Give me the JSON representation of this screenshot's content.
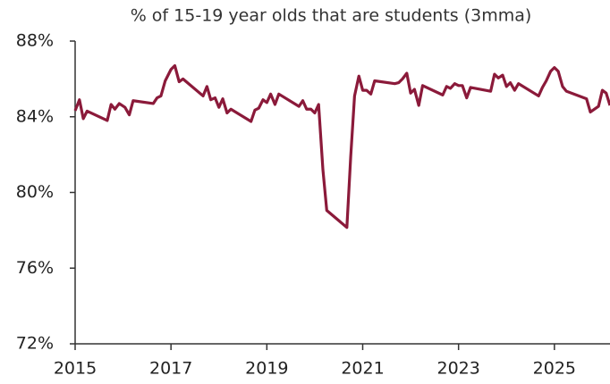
{
  "chart_data": {
    "type": "line",
    "title": "% of 15-19 year olds that are students (3mma)",
    "x": [
      2015.0,
      2015.09,
      2015.17,
      2015.25,
      2015.67,
      2015.75,
      2015.83,
      2015.92,
      2016.04,
      2016.13,
      2016.21,
      2016.63,
      2016.71,
      2016.79,
      2016.88,
      2017.0,
      2017.08,
      2017.17,
      2017.25,
      2017.67,
      2017.75,
      2017.83,
      2017.92,
      2018.0,
      2018.08,
      2018.17,
      2018.25,
      2018.67,
      2018.75,
      2018.83,
      2018.92,
      2019.0,
      2019.08,
      2019.17,
      2019.25,
      2019.67,
      2019.75,
      2019.83,
      2019.92,
      2020.0,
      2020.08,
      2020.17,
      2020.25,
      2020.67,
      2020.75,
      2020.83,
      2020.92,
      2021.0,
      2021.08,
      2021.17,
      2021.25,
      2021.67,
      2021.75,
      2021.83,
      2021.92,
      2022.0,
      2022.08,
      2022.17,
      2022.25,
      2022.67,
      2022.75,
      2022.83,
      2022.92,
      2023.0,
      2023.08,
      2023.17,
      2023.25,
      2023.67,
      2023.75,
      2023.83,
      2023.92,
      2024.0,
      2024.08,
      2024.17,
      2024.25,
      2024.67,
      2024.75,
      2024.83,
      2024.92,
      2025.0,
      2025.08,
      2025.17,
      2025.25,
      2025.67,
      2025.75,
      2025.92,
      2026.0,
      2026.08,
      2026.16
    ],
    "series": [
      {
        "name": "% of 15-19 year olds that are students",
        "color": "#8b1a3a",
        "values": [
          84.32,
          84.9,
          83.9,
          84.3,
          83.8,
          84.65,
          84.4,
          84.7,
          84.5,
          84.1,
          84.85,
          84.7,
          85.0,
          85.1,
          85.9,
          86.5,
          86.7,
          85.85,
          86.0,
          85.1,
          85.6,
          84.9,
          85.0,
          84.5,
          84.95,
          84.2,
          84.4,
          83.75,
          84.35,
          84.45,
          84.9,
          84.75,
          85.2,
          84.65,
          85.2,
          84.55,
          84.85,
          84.4,
          84.4,
          84.2,
          84.65,
          81.2,
          79.05,
          78.15,
          81.9,
          85.1,
          86.15,
          85.4,
          85.4,
          85.2,
          85.9,
          85.75,
          85.8,
          86.0,
          86.3,
          85.25,
          85.45,
          84.6,
          85.65,
          85.15,
          85.6,
          85.5,
          85.75,
          85.65,
          85.65,
          85.0,
          85.55,
          85.35,
          86.25,
          86.05,
          86.2,
          85.6,
          85.8,
          85.4,
          85.75,
          85.1,
          85.55,
          85.9,
          86.4,
          86.6,
          86.4,
          85.6,
          85.35,
          84.95,
          84.25,
          84.55,
          85.4,
          85.25,
          84.6
        ]
      }
    ],
    "xlim": [
      2015,
      2026.16
    ],
    "xticks": [
      2015,
      2017,
      2019,
      2021,
      2023,
      2025
    ],
    "ylim": [
      72,
      88
    ],
    "yticks": [
      {
        "value": 72,
        "label": "72%"
      },
      {
        "value": 76,
        "label": "76%"
      },
      {
        "value": 80,
        "label": "80%"
      },
      {
        "value": 84,
        "label": "84%"
      },
      {
        "value": 88,
        "label": "88%"
      }
    ],
    "grid": false
  }
}
